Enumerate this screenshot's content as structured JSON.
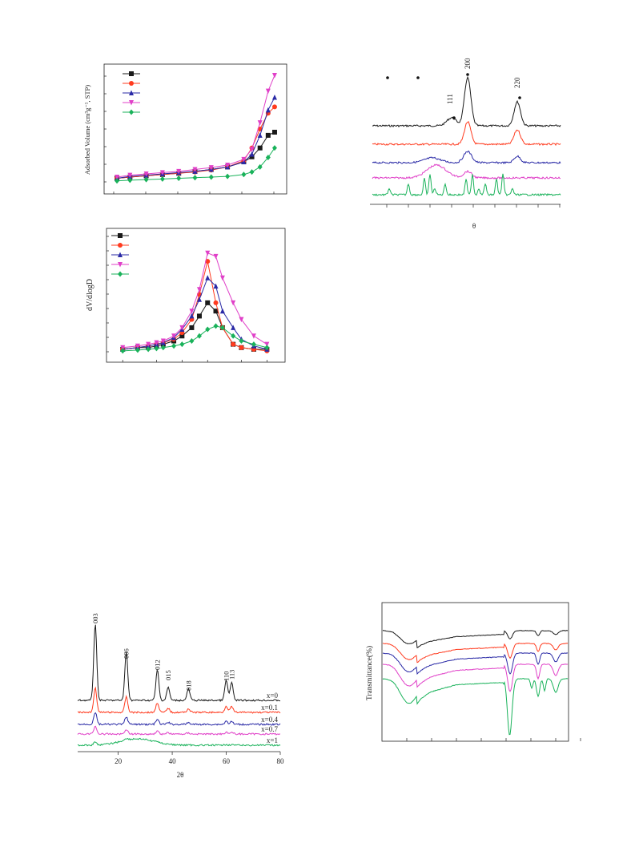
{
  "colors": {
    "black": "#1a1a1a",
    "red": "#ff3b1f",
    "blue": "#2a2aa6",
    "magenta": "#e040c8",
    "green": "#19b25a"
  },
  "chart_data": [
    {
      "id": "isotherm",
      "type": "line",
      "title": "",
      "xlabel": "",
      "ylabel": "Adsorbed Volume (cm³g⁻¹, STP)",
      "x": [
        0.02,
        0.1,
        0.2,
        0.3,
        0.4,
        0.5,
        0.6,
        0.7,
        0.8,
        0.85,
        0.9,
        0.95,
        0.99
      ],
      "series": [
        {
          "name": "",
          "color_key": "black",
          "marker": "square",
          "values": [
            12,
            14,
            16,
            18,
            20,
            23,
            26,
            30,
            38,
            46,
            60,
            80,
            85
          ]
        },
        {
          "name": "",
          "color_key": "red",
          "marker": "circle",
          "values": [
            12,
            14,
            16,
            18,
            20,
            22,
            25,
            30,
            40,
            60,
            90,
            115,
            125
          ]
        },
        {
          "name": "",
          "color_key": "blue",
          "marker": "triangle-up",
          "values": [
            12,
            15,
            17,
            19,
            21,
            23,
            26,
            30,
            38,
            50,
            80,
            120,
            140
          ]
        },
        {
          "name": "",
          "color_key": "magenta",
          "marker": "triangle-down",
          "values": [
            14,
            17,
            19,
            21,
            23,
            26,
            29,
            33,
            42,
            58,
            100,
            150,
            175
          ]
        },
        {
          "name": "",
          "color_key": "green",
          "marker": "diamond",
          "values": [
            8,
            9,
            10,
            11,
            12,
            13,
            14,
            15,
            18,
            22,
            30,
            45,
            60
          ]
        }
      ],
      "ylim": [
        0,
        180
      ]
    },
    {
      "id": "pore_size",
      "type": "line",
      "title": "",
      "xlabel": "",
      "ylabel": "dV/dlogD",
      "x": [
        2,
        3,
        4,
        5,
        6,
        8,
        10,
        13,
        16,
        20,
        25,
        30,
        40,
        50,
        70,
        100
      ],
      "series": [
        {
          "name": "",
          "color_key": "black",
          "marker": "square",
          "values": [
            0.02,
            0.03,
            0.03,
            0.04,
            0.05,
            0.07,
            0.1,
            0.15,
            0.22,
            0.3,
            0.25,
            0.15,
            0.05,
            0.03,
            0.02,
            0.02
          ]
        },
        {
          "name": "",
          "color_key": "red",
          "marker": "circle",
          "values": [
            0.02,
            0.03,
            0.04,
            0.05,
            0.06,
            0.08,
            0.12,
            0.2,
            0.35,
            0.55,
            0.3,
            0.15,
            0.05,
            0.03,
            0.02,
            0.01
          ]
        },
        {
          "name": "",
          "color_key": "blue",
          "marker": "triangle-up",
          "values": [
            0.02,
            0.03,
            0.04,
            0.05,
            0.06,
            0.09,
            0.14,
            0.22,
            0.32,
            0.45,
            0.4,
            0.25,
            0.15,
            0.08,
            0.04,
            0.02
          ]
        },
        {
          "name": "",
          "color_key": "magenta",
          "marker": "triangle-down",
          "values": [
            0.03,
            0.04,
            0.05,
            0.06,
            0.07,
            0.1,
            0.15,
            0.25,
            0.38,
            0.6,
            0.58,
            0.45,
            0.3,
            0.2,
            0.1,
            0.05
          ]
        },
        {
          "name": "",
          "color_key": "green",
          "marker": "diamond",
          "values": [
            0.01,
            0.015,
            0.02,
            0.025,
            0.03,
            0.04,
            0.05,
            0.07,
            0.1,
            0.14,
            0.16,
            0.15,
            0.1,
            0.07,
            0.05,
            0.03
          ]
        }
      ],
      "ylim": [
        0,
        0.7
      ]
    },
    {
      "id": "xrd_right",
      "type": "line",
      "title": "",
      "xlabel": "θ",
      "ylabel": "",
      "peak_labels": [
        "111",
        "200",
        "220"
      ],
      "series": [
        {
          "name": "",
          "color_key": "black"
        },
        {
          "name": "",
          "color_key": "red"
        },
        {
          "name": "",
          "color_key": "blue"
        },
        {
          "name": "",
          "color_key": "magenta"
        },
        {
          "name": "",
          "color_key": "green"
        }
      ]
    },
    {
      "id": "xrd_bottom",
      "type": "line",
      "title": "",
      "xlabel": "2θ",
      "ylabel": "",
      "x_ticks": [
        "20",
        "40",
        "60",
        "80"
      ],
      "xlim": [
        5,
        80
      ],
      "peak_labels": [
        {
          "label": "003",
          "x": 11.5
        },
        {
          "label": "006",
          "x": 23
        },
        {
          "label": "012",
          "x": 34.5
        },
        {
          "label": "015",
          "x": 38.5
        },
        {
          "label": "018",
          "x": 46
        },
        {
          "label": "110",
          "x": 60
        },
        {
          "label": "113",
          "x": 62
        }
      ],
      "series": [
        {
          "name": "x=0",
          "color_key": "black"
        },
        {
          "name": "x=0.1",
          "color_key": "red"
        },
        {
          "name": "x=0.4",
          "color_key": "blue"
        },
        {
          "name": "x=0.7",
          "color_key": "magenta"
        },
        {
          "name": "x=1",
          "color_key": "green"
        }
      ]
    },
    {
      "id": "ftir",
      "type": "line",
      "title": "",
      "xlabel": "",
      "ylabel": "Transmittance(%)",
      "series": [
        {
          "name": "",
          "color_key": "black"
        },
        {
          "name": "",
          "color_key": "red"
        },
        {
          "name": "",
          "color_key": "blue"
        },
        {
          "name": "",
          "color_key": "magenta"
        },
        {
          "name": "",
          "color_key": "green"
        }
      ]
    }
  ]
}
